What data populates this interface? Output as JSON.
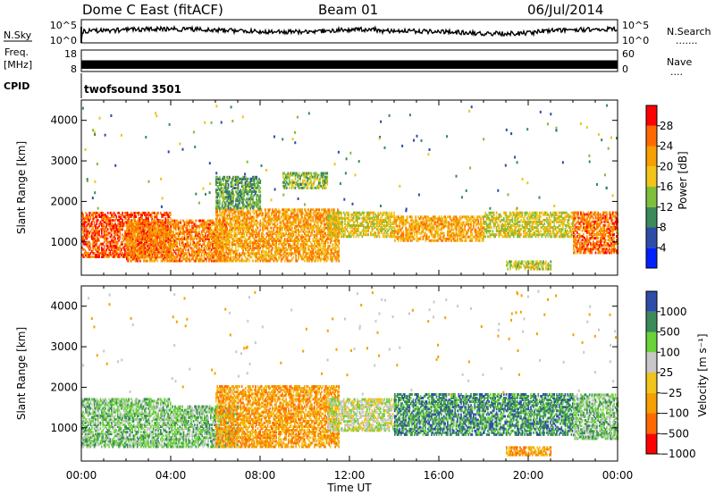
{
  "header": {
    "station": "Dome C East (fitACF)",
    "beam": "Beam 01",
    "date": "06/Jul/2014"
  },
  "top_panels": {
    "nsky_label": "N.Sky",
    "nsky_ticks": [
      "10^5",
      "10^0"
    ],
    "nsearch_label": "N.Search",
    "nsearch_ticks": [
      "10^5",
      "10^0"
    ],
    "nsearch_marker": ".......",
    "freq_label": "Freq.",
    "freq_unit": "[MHz]",
    "freq_ticks": [
      "18",
      "8"
    ],
    "nave_label": "Nave",
    "nave_ticks": [
      "60",
      "0"
    ],
    "nave_marker": "....",
    "cpid_label": "CPID",
    "cpid_value": "twofsound 3501"
  },
  "colors": {
    "power": [
      "#0020ff",
      "#2d4da8",
      "#3a8a5a",
      "#7fbf3a",
      "#f0c419",
      "#f5a000",
      "#ff6a00",
      "#ff0000"
    ],
    "velocity": [
      "#ff0000",
      "#ff6a00",
      "#f5a000",
      "#f0c419",
      "#c8c8c8",
      "#6ad33a",
      "#3a8a5a",
      "#2d4da8"
    ]
  },
  "chart_data": [
    {
      "type": "heatmap",
      "name": "power",
      "ylabel": "Slant Range [km]",
      "xlabel": "",
      "x_range": [
        0,
        24
      ],
      "y_range": [
        180,
        4500
      ],
      "yticks": [
        1000,
        2000,
        3000,
        4000
      ],
      "ytick_labels": [
        "1000",
        "2000",
        "3000",
        "4000"
      ],
      "colorbar": {
        "label": "Power [dB]",
        "ticks": [
          "4",
          "8",
          "12",
          "16",
          "20",
          "24",
          "28"
        ],
        "range": [
          0,
          32
        ]
      },
      "band_model": [
        {
          "t": [
            0,
            4
          ],
          "r": [
            600,
            1700
          ],
          "v": 27
        },
        {
          "t": [
            2,
            6.5
          ],
          "r": [
            500,
            1500
          ],
          "v": 24
        },
        {
          "t": [
            6,
            11.5
          ],
          "r": [
            500,
            1800
          ],
          "v": 22
        },
        {
          "t": [
            11,
            14
          ],
          "r": [
            1100,
            1700
          ],
          "v": 18
        },
        {
          "t": [
            14,
            18
          ],
          "r": [
            1000,
            1600
          ],
          "v": 21
        },
        {
          "t": [
            18,
            22
          ],
          "r": [
            1100,
            1700
          ],
          "v": 17
        },
        {
          "t": [
            22,
            24
          ],
          "r": [
            700,
            1700
          ],
          "v": 25
        },
        {
          "t": [
            6,
            8
          ],
          "r": [
            1800,
            2600
          ],
          "v": 12
        },
        {
          "t": [
            9,
            11
          ],
          "r": [
            2300,
            2700
          ],
          "v": 14
        },
        {
          "t": [
            19,
            21
          ],
          "r": [
            300,
            500
          ],
          "v": 16
        }
      ]
    },
    {
      "type": "heatmap",
      "name": "velocity",
      "ylabel": "Slant Range [km]",
      "xlabel": "Time UT",
      "x_range": [
        0,
        24
      ],
      "y_range": [
        180,
        4500
      ],
      "yticks": [
        1000,
        2000,
        3000,
        4000
      ],
      "ytick_labels": [
        "1000",
        "2000",
        "3000",
        "4000"
      ],
      "xticks": [
        0,
        4,
        8,
        12,
        16,
        20,
        24
      ],
      "xtick_labels": [
        "00:00",
        "04:00",
        "08:00",
        "12:00",
        "16:00",
        "20:00",
        "00:00"
      ],
      "colorbar": {
        "label": "Velocity [m s⁻¹]",
        "ticks": [
          "1000",
          "500",
          "100",
          "25",
          "−25",
          "−100",
          "−500",
          "−1000"
        ]
      },
      "band_model": [
        {
          "t": [
            0,
            4
          ],
          "r": [
            500,
            1700
          ],
          "v": 5
        },
        {
          "t": [
            4,
            7
          ],
          "r": [
            500,
            1500
          ],
          "v": 5
        },
        {
          "t": [
            6,
            11.5
          ],
          "r": [
            500,
            2000
          ],
          "v": 2
        },
        {
          "t": [
            11,
            14
          ],
          "r": [
            900,
            1700
          ],
          "v": 4
        },
        {
          "t": [
            14,
            18
          ],
          "r": [
            800,
            1800
          ],
          "v": 6
        },
        {
          "t": [
            18,
            22
          ],
          "r": [
            800,
            1800
          ],
          "v": 6
        },
        {
          "t": [
            22,
            24
          ],
          "r": [
            700,
            1800
          ],
          "v": 5
        },
        {
          "t": [
            19,
            21
          ],
          "r": [
            300,
            500
          ],
          "v": 2
        }
      ]
    }
  ]
}
